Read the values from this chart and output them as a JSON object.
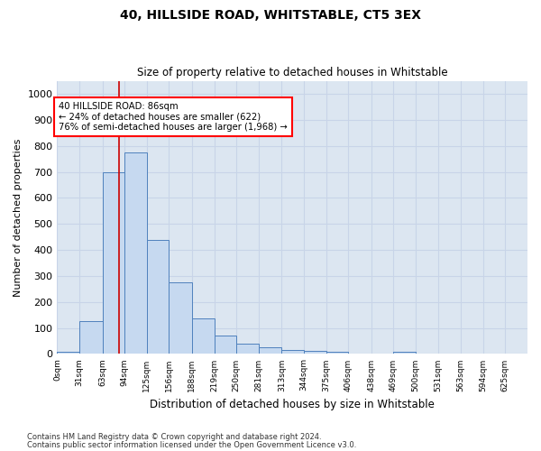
{
  "title": "40, HILLSIDE ROAD, WHITSTABLE, CT5 3EX",
  "subtitle": "Size of property relative to detached houses in Whitstable",
  "xlabel": "Distribution of detached houses by size in Whitstable",
  "ylabel": "Number of detached properties",
  "bar_labels": [
    "0sqm",
    "31sqm",
    "63sqm",
    "94sqm",
    "125sqm",
    "156sqm",
    "188sqm",
    "219sqm",
    "250sqm",
    "281sqm",
    "313sqm",
    "344sqm",
    "375sqm",
    "406sqm",
    "438sqm",
    "469sqm",
    "500sqm",
    "531sqm",
    "563sqm",
    "594sqm",
    "625sqm"
  ],
  "bar_values": [
    8,
    128,
    700,
    775,
    440,
    275,
    135,
    70,
    40,
    25,
    15,
    12,
    8,
    0,
    0,
    10,
    0,
    0,
    0,
    0,
    0
  ],
  "bar_color": "#c6d9f0",
  "bar_edge_color": "#4f81bd",
  "grid_color": "#c8d4e8",
  "background_color": "#dce6f1",
  "annotation_text": "40 HILLSIDE ROAD: 86sqm\n← 24% of detached houses are smaller (622)\n76% of semi-detached houses are larger (1,968) →",
  "vline_color": "#cc0000",
  "ylim": [
    0,
    1050
  ],
  "yticks": [
    0,
    100,
    200,
    300,
    400,
    500,
    600,
    700,
    800,
    900,
    1000
  ],
  "footnote1": "Contains HM Land Registry data © Crown copyright and database right 2024.",
  "footnote2": "Contains public sector information licensed under the Open Government Licence v3.0.",
  "bin_edges": [
    0,
    31,
    63,
    94,
    125,
    156,
    188,
    219,
    250,
    281,
    313,
    344,
    375,
    406,
    438,
    469,
    500,
    531,
    563,
    594,
    625,
    656
  ]
}
